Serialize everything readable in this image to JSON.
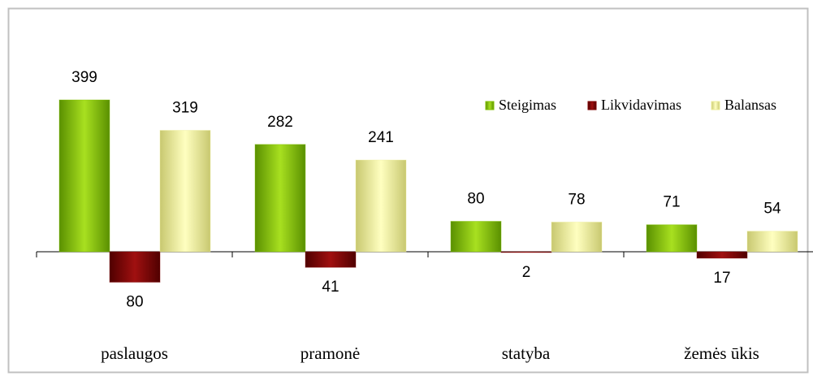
{
  "chart_data": {
    "type": "bar",
    "categories": [
      "paslaugos",
      "pramonė",
      "statyba",
      "žemės ūkis"
    ],
    "series": [
      {
        "name": "Steigimas",
        "color": "#80c000",
        "values": [
          399,
          282,
          80,
          71
        ]
      },
      {
        "name": "Likvidavimas",
        "color": "#800000",
        "values": [
          -80,
          -41,
          -2,
          -17
        ],
        "value_labels": [
          "80",
          "41",
          "2",
          "17"
        ]
      },
      {
        "name": "Balansas",
        "color": "#eeee99",
        "values": [
          319,
          241,
          78,
          54
        ]
      }
    ],
    "legend": "top-right"
  }
}
